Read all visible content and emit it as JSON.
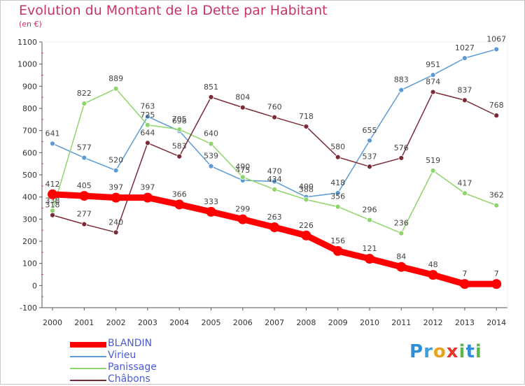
{
  "title": "Evolution du Montant de la Dette par Habitant",
  "unit": "(en €)",
  "logo": [
    {
      "ch": "P",
      "color": "#2e8fd6"
    },
    {
      "ch": "r",
      "color": "#3aa0e0"
    },
    {
      "ch": "o",
      "color": "#e8a41e"
    },
    {
      "ch": "x",
      "color": "#e0382e"
    },
    {
      "ch": "i",
      "color": "#5bb848"
    },
    {
      "ch": "t",
      "color": "#2e8fd6"
    },
    {
      "ch": "i",
      "color": "#5bb848"
    }
  ],
  "chart_data": {
    "type": "line",
    "title": "Evolution du Montant de la Dette par Habitant",
    "ylabel": "(en €)",
    "xlabel": "",
    "ylim": [
      -100,
      1100
    ],
    "yticks": [
      -100,
      0,
      100,
      200,
      300,
      400,
      500,
      600,
      700,
      800,
      900,
      1000,
      1100
    ],
    "x": [
      "2000",
      "2001",
      "2002",
      "2003",
      "2004",
      "2005",
      "2006",
      "2007",
      "2008",
      "2009",
      "2010",
      "2011",
      "2012",
      "2013",
      "2014"
    ],
    "grid": false,
    "legend": "bottom-left",
    "series": [
      {
        "name": "Virieu",
        "color": "#5b9bd5",
        "values": [
          641,
          577,
          520,
          763,
          698,
          539,
          475,
          470,
          400,
          418,
          655,
          883,
          951,
          1027,
          1067
        ]
      },
      {
        "name": "Panissage",
        "color": "#8ed56b",
        "values": [
          338,
          822,
          889,
          725,
          705,
          640,
          490,
          434,
          388,
          356,
          296,
          236,
          519,
          417,
          362
        ]
      },
      {
        "name": "Châbons",
        "color": "#7a2c36",
        "values": [
          318,
          277,
          240,
          644,
          583,
          851,
          804,
          760,
          718,
          580,
          537,
          576,
          874,
          837,
          768
        ]
      },
      {
        "name": "BLANDIN",
        "color": "#ff0000",
        "values": [
          412,
          405,
          397,
          397,
          366,
          333,
          299,
          263,
          226,
          156,
          121,
          84,
          48,
          7,
          7
        ]
      }
    ]
  }
}
